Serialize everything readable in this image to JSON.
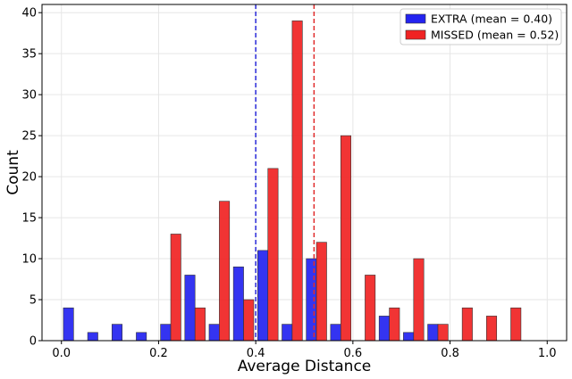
{
  "chart_data": {
    "type": "bar",
    "xlabel": "Average Distance",
    "ylabel": "Count",
    "xlim": [
      -0.04,
      1.04
    ],
    "ylim": [
      0,
      41
    ],
    "xticks": [
      0.0,
      0.2,
      0.4,
      0.6,
      0.8,
      1.0
    ],
    "xtick_labels": [
      "0.0",
      "0.2",
      "0.4",
      "0.6",
      "0.8",
      "1.0"
    ],
    "yticks": [
      0,
      5,
      10,
      15,
      20,
      25,
      30,
      35,
      40
    ],
    "ytick_labels": [
      "0",
      "5",
      "10",
      "15",
      "20",
      "25",
      "30",
      "35",
      "40"
    ],
    "grid": true,
    "legend_position": "top-right",
    "bin_centers": [
      0.025,
      0.075,
      0.125,
      0.175,
      0.225,
      0.275,
      0.325,
      0.375,
      0.425,
      0.475,
      0.525,
      0.575,
      0.625,
      0.675,
      0.725,
      0.775,
      0.825,
      0.875,
      0.925,
      0.975
    ],
    "series": [
      {
        "name": "EXTRA (mean = 0.40)",
        "color": "#2323f0",
        "mean": 0.4,
        "values": [
          4,
          1,
          2,
          1,
          2,
          8,
          2,
          9,
          11,
          2,
          10,
          2,
          0,
          3,
          1,
          2,
          0,
          0,
          0,
          0
        ]
      },
      {
        "name": "MISSED (mean = 0.52)",
        "color": "#f02323",
        "mean": 0.52,
        "values": [
          0,
          0,
          0,
          0,
          13,
          4,
          17,
          5,
          21,
          39,
          12,
          25,
          8,
          4,
          10,
          2,
          4,
          3,
          4,
          0
        ]
      }
    ]
  }
}
